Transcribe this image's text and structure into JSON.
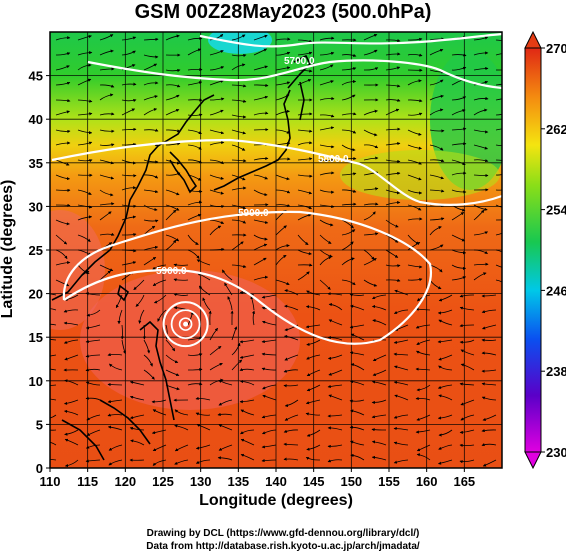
{
  "title": "GSM 00Z28May2023 (500.0hPa)",
  "x_axis": {
    "label": "Longitude (degrees)",
    "range": [
      110,
      170
    ],
    "ticks": [
      110,
      115,
      120,
      125,
      130,
      135,
      140,
      145,
      150,
      155,
      160,
      165
    ]
  },
  "y_axis": {
    "label": "Latitude  (degrees)",
    "range": [
      0,
      50
    ],
    "ticks": [
      0,
      5,
      10,
      15,
      20,
      25,
      30,
      35,
      40,
      45
    ]
  },
  "colorbar": {
    "ticks": [
      230,
      238,
      246,
      254,
      262,
      270
    ],
    "range": [
      230,
      270
    ],
    "colors": [
      "#e000e0",
      "#3000c8",
      "#0a64f0",
      "#00d4e8",
      "#1ecb3a",
      "#d8ec10",
      "#f6a010",
      "#e43c14"
    ]
  },
  "contours": [
    {
      "label": "5700.0"
    },
    {
      "label": "5800.0"
    },
    {
      "label": "5900.0"
    }
  ],
  "features": {
    "typhoon_center": {
      "lon": 128,
      "lat": 16.5
    }
  },
  "credits": [
    "Drawing by DCL (https://www.gfd-dennou.org/library/dcl/)",
    "Data from http://database.rish.kyoto-u.ac.jp/arch/jmadata/"
  ]
}
